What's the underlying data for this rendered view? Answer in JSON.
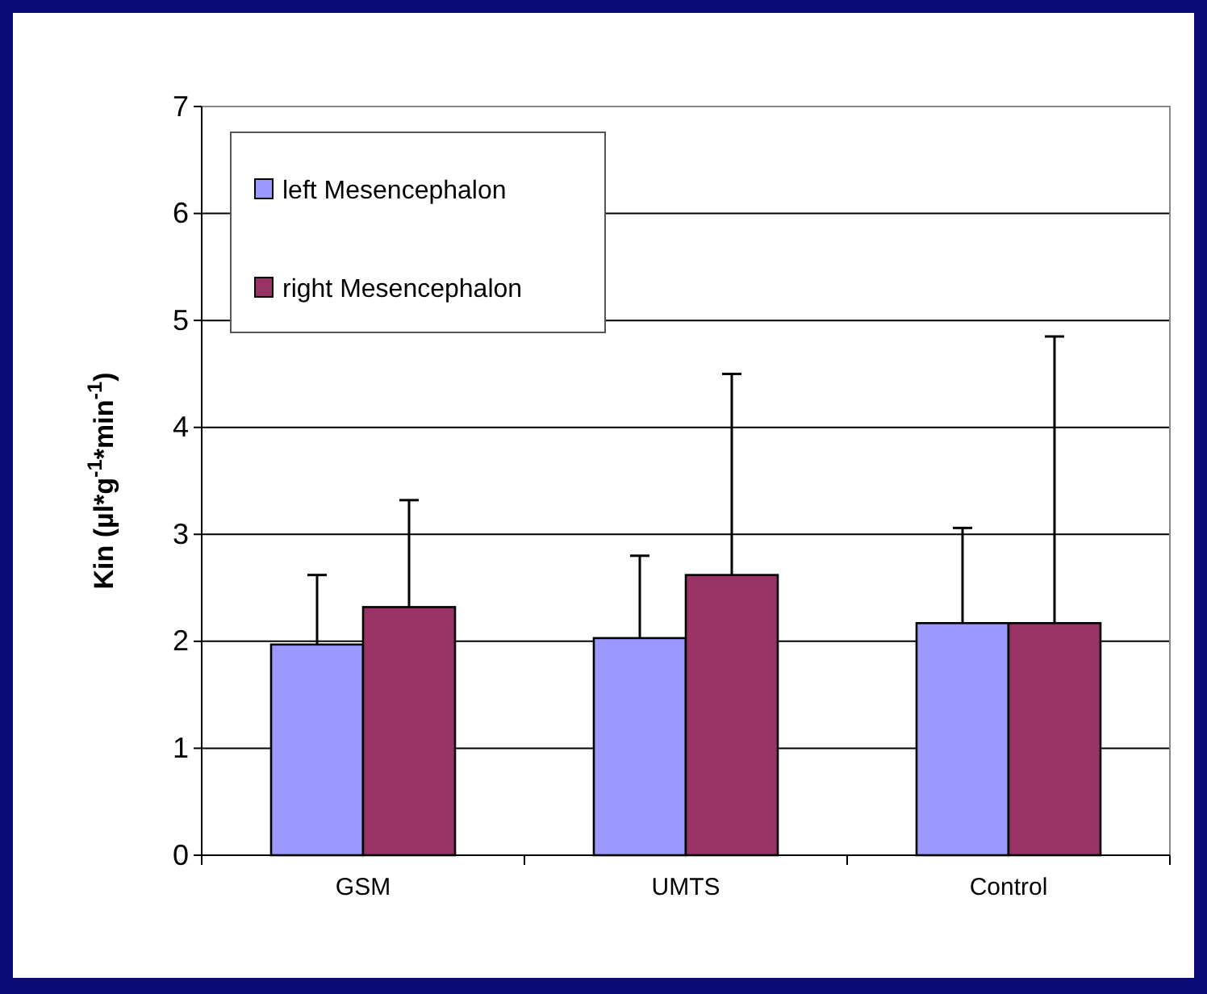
{
  "chart_data": {
    "type": "bar",
    "ylabel": "Kin (µl*g$^{-1}$*min$^{-1}$)",
    "categories": [
      "GSM",
      "UMTS",
      "Control"
    ],
    "series": [
      {
        "name": "left Mesencephalon",
        "color": "#9999ff",
        "values": [
          1.97,
          2.03,
          2.17
        ],
        "errors": [
          [
            1.97,
            2.62
          ],
          [
            2.03,
            2.8
          ],
          [
            2.17,
            3.06
          ]
        ]
      },
      {
        "name": "right Mesencephalon",
        "color": "#993366",
        "values": [
          2.32,
          2.62,
          2.17
        ],
        "errors": [
          [
            2.32,
            3.32
          ],
          [
            2.62,
            4.5
          ],
          [
            2.17,
            4.85
          ]
        ]
      }
    ],
    "ylim": [
      0,
      7
    ],
    "yticks": [
      0,
      1,
      2,
      3,
      4,
      5,
      6,
      7
    ],
    "grid": "y",
    "legend": "top left"
  }
}
